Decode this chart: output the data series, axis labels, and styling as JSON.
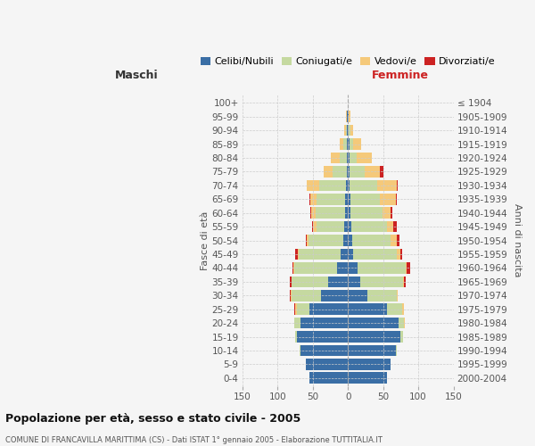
{
  "age_groups": [
    "0-4",
    "5-9",
    "10-14",
    "15-19",
    "20-24",
    "25-29",
    "30-34",
    "35-39",
    "40-44",
    "45-49",
    "50-54",
    "55-59",
    "60-64",
    "65-69",
    "70-74",
    "75-79",
    "80-84",
    "85-89",
    "90-94",
    "95-99",
    "100+"
  ],
  "birth_years": [
    "2000-2004",
    "1995-1999",
    "1990-1994",
    "1985-1989",
    "1980-1984",
    "1975-1979",
    "1970-1974",
    "1965-1969",
    "1960-1964",
    "1955-1959",
    "1950-1954",
    "1945-1949",
    "1940-1944",
    "1935-1939",
    "1930-1934",
    "1925-1929",
    "1920-1924",
    "1915-1919",
    "1910-1914",
    "1905-1909",
    "≤ 1904"
  ],
  "male": {
    "celibi": [
      55,
      60,
      68,
      72,
      68,
      55,
      38,
      28,
      16,
      10,
      6,
      5,
      4,
      4,
      3,
      2,
      2,
      2,
      1,
      1,
      0
    ],
    "coniugati": [
      0,
      0,
      1,
      3,
      8,
      18,
      42,
      52,
      60,
      60,
      50,
      40,
      42,
      40,
      38,
      20,
      10,
      5,
      2,
      1,
      0
    ],
    "vedovi": [
      0,
      0,
      0,
      0,
      0,
      2,
      1,
      0,
      1,
      1,
      2,
      5,
      6,
      10,
      18,
      12,
      12,
      5,
      2,
      1,
      0
    ],
    "divorziati": [
      0,
      0,
      0,
      0,
      0,
      1,
      1,
      2,
      2,
      4,
      2,
      1,
      1,
      1,
      0,
      0,
      0,
      0,
      0,
      0,
      0
    ]
  },
  "female": {
    "nubili": [
      55,
      60,
      68,
      75,
      72,
      55,
      28,
      18,
      14,
      8,
      6,
      5,
      4,
      4,
      2,
      2,
      2,
      2,
      1,
      1,
      0
    ],
    "coniugate": [
      0,
      0,
      1,
      3,
      8,
      22,
      42,
      60,
      68,
      62,
      55,
      50,
      45,
      42,
      40,
      22,
      10,
      5,
      2,
      0,
      0
    ],
    "vedove": [
      0,
      0,
      0,
      0,
      1,
      2,
      1,
      2,
      2,
      5,
      8,
      10,
      12,
      22,
      28,
      22,
      22,
      12,
      5,
      2,
      0
    ],
    "divorziate": [
      0,
      0,
      0,
      0,
      0,
      0,
      0,
      2,
      4,
      2,
      4,
      4,
      2,
      1,
      1,
      4,
      0,
      0,
      0,
      0,
      0
    ]
  },
  "colors": {
    "celibi": "#3a6ea5",
    "coniugati": "#c5d9a0",
    "vedovi": "#f5c97a",
    "divorziati": "#cc2222"
  },
  "xlim": 150,
  "title": "Popolazione per età, sesso e stato civile - 2005",
  "subtitle": "COMUNE DI FRANCAVILLA MARITTIMA (CS) - Dati ISTAT 1° gennaio 2005 - Elaborazione TUTTITALIA.IT",
  "ylabel_left": "Fasce di età",
  "ylabel_right": "Anni di nascita",
  "xlabel_left": "Maschi",
  "xlabel_right": "Femmine",
  "bg_color": "#f5f5f5",
  "grid_color": "#cccccc"
}
